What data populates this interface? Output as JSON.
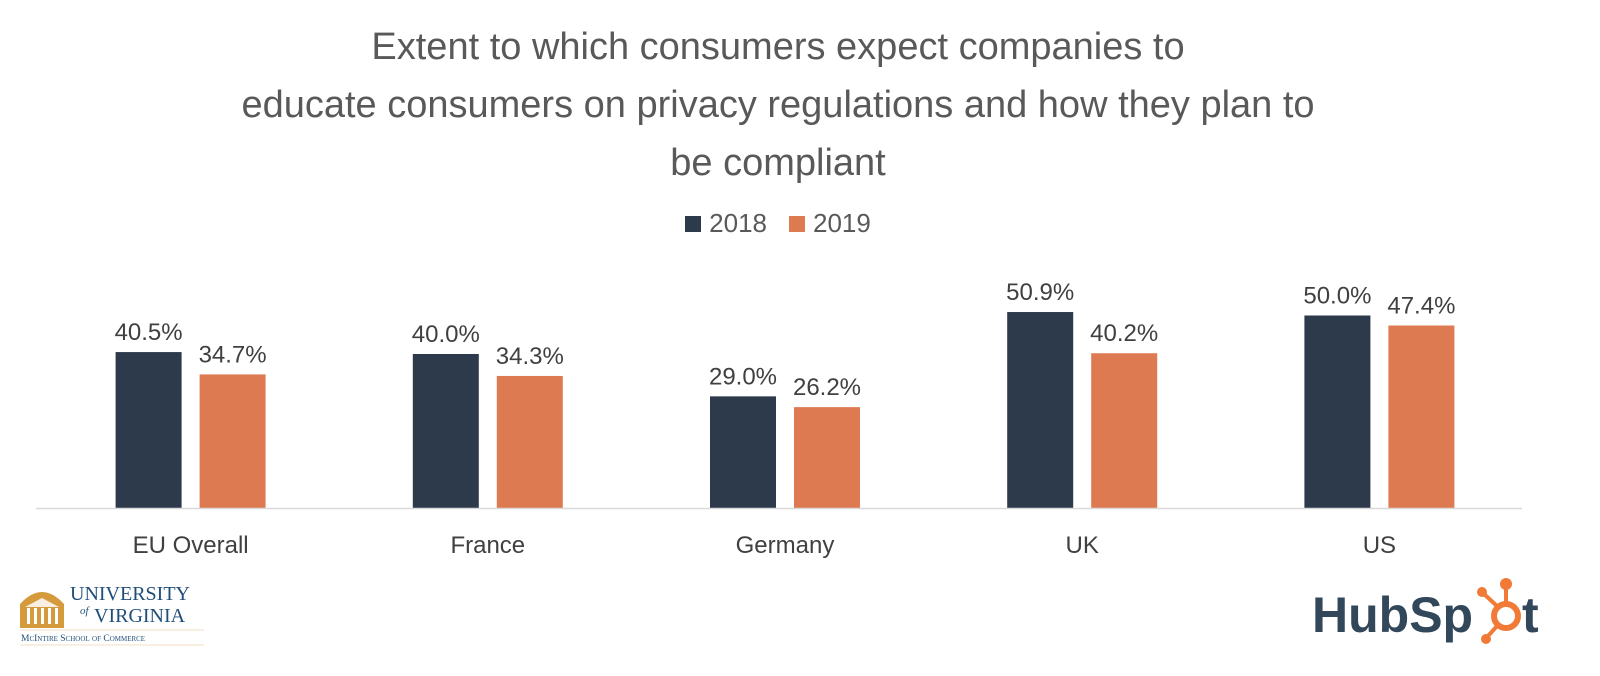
{
  "chart_data": {
    "type": "bar",
    "title": "Extent to which consumers expect companies to educate consumers on privacy regulations and how they plan to be compliant",
    "title_lines": [
      "Extent to which consumers expect companies to",
      "educate consumers on privacy regulations and how they plan to",
      "be compliant"
    ],
    "categories": [
      "EU Overall",
      "France",
      "Germany",
      "UK",
      "US"
    ],
    "series": [
      {
        "name": "2018",
        "color": "#2C3A4B",
        "values": [
          40.5,
          40.0,
          29.0,
          50.9,
          50.0
        ],
        "labels": [
          "40.5%",
          "40.0%",
          "29.0%",
          "50.9%",
          "50.0%"
        ]
      },
      {
        "name": "2019",
        "color": "#DE7A52",
        "values": [
          34.7,
          34.3,
          26.2,
          40.2,
          47.4
        ],
        "labels": [
          "34.7%",
          "34.3%",
          "26.2%",
          "40.2%",
          "47.4%"
        ]
      }
    ],
    "xlabel": "",
    "ylabel": "",
    "ylim": [
      0,
      60
    ],
    "unit": "%",
    "grid": false,
    "y_axis_visible": false,
    "legend_position": "top-center"
  },
  "logos": {
    "left": {
      "name": "University of Virginia",
      "line1": "UNIVERSITY",
      "of": "of",
      "line2": "VIRGINIA",
      "subtitle": "McIntire School of Commerce",
      "color_text": "#1F4E79",
      "color_gold": "#D49A3C"
    },
    "right": {
      "name": "HubSpot",
      "text_hub": "HubSp",
      "text_t": "t",
      "color_text": "#33475B",
      "color_accent": "#F07A36"
    }
  }
}
